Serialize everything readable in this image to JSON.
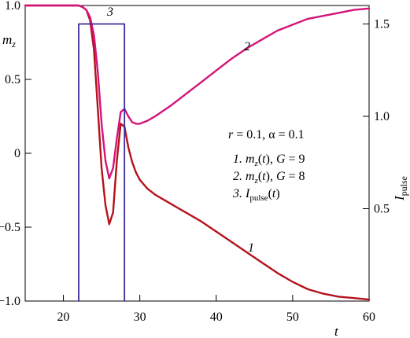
{
  "chart_data": {
    "type": "line",
    "x_axis": {
      "label": "t",
      "range": [
        15,
        60
      ],
      "ticks": [
        20,
        30,
        40,
        50,
        60
      ],
      "tick_labels": [
        "20",
        "30",
        "40",
        "50",
        "60"
      ]
    },
    "y_axis_left": {
      "label": "m",
      "label_sub": "z",
      "range": [
        -1.0,
        1.0
      ],
      "ticks": [
        -1.0,
        -0.5,
        0,
        0.5,
        1.0
      ],
      "tick_labels": [
        "−1.0",
        "−0.5",
        "0",
        "0.5",
        "1.0"
      ]
    },
    "y_axis_right": {
      "label": "I",
      "label_sub": "pulse",
      "range": [
        0,
        1.6
      ],
      "ticks": [
        0.5,
        1.0,
        1.5
      ],
      "tick_labels": [
        "0.5",
        "1.0",
        "1.5"
      ]
    },
    "series": [
      {
        "name": "1",
        "axis": "left",
        "color": "#b5121b",
        "x": [
          15,
          20,
          21,
          22,
          22.5,
          23,
          23.5,
          24,
          24.5,
          25,
          25.5,
          26,
          26.5,
          27,
          27.5,
          28,
          28.5,
          29,
          29.5,
          30,
          31,
          32,
          33,
          34,
          35,
          36,
          38,
          40,
          42,
          44,
          46,
          48,
          50,
          52,
          54,
          56,
          58,
          60
        ],
        "y": [
          1.0,
          1.0,
          1.0,
          1.0,
          0.99,
          0.97,
          0.9,
          0.7,
          0.3,
          -0.1,
          -0.35,
          -0.48,
          -0.4,
          -0.05,
          0.2,
          0.18,
          0.04,
          -0.06,
          -0.13,
          -0.18,
          -0.24,
          -0.28,
          -0.31,
          -0.34,
          -0.37,
          -0.4,
          -0.46,
          -0.53,
          -0.6,
          -0.67,
          -0.74,
          -0.81,
          -0.87,
          -0.92,
          -0.95,
          -0.97,
          -0.98,
          -0.99
        ]
      },
      {
        "name": "2",
        "axis": "left",
        "color": "#d4147a",
        "x": [
          15,
          20,
          21,
          22,
          22.5,
          23,
          23.5,
          24,
          24.5,
          25,
          25.5,
          26,
          26.5,
          27,
          27.5,
          28,
          28.5,
          29,
          29.5,
          30,
          31,
          32,
          34,
          36,
          38,
          40,
          42,
          44,
          46,
          48,
          50,
          52,
          54,
          56,
          58,
          60
        ],
        "y": [
          1.0,
          1.0,
          1.0,
          1.0,
          0.99,
          0.97,
          0.92,
          0.8,
          0.55,
          0.2,
          -0.05,
          -0.17,
          -0.1,
          0.1,
          0.28,
          0.3,
          0.25,
          0.21,
          0.2,
          0.2,
          0.22,
          0.25,
          0.32,
          0.4,
          0.48,
          0.56,
          0.64,
          0.71,
          0.77,
          0.83,
          0.87,
          0.91,
          0.93,
          0.95,
          0.97,
          0.98
        ]
      },
      {
        "name": "3",
        "axis": "right",
        "color": "#3a2a9a",
        "x": [
          22,
          22,
          28,
          28
        ],
        "y": [
          0,
          1.5,
          1.5,
          0
        ]
      }
    ],
    "curve_labels": [
      "1",
      "2",
      "3"
    ],
    "legend_text": {
      "params": "r = 0.1, α = 0.1",
      "entry1": "1. m_z(t), G = 9",
      "entry2": "2. m_z(t), G = 8",
      "entry3": "3. I_pulse(t)"
    }
  }
}
